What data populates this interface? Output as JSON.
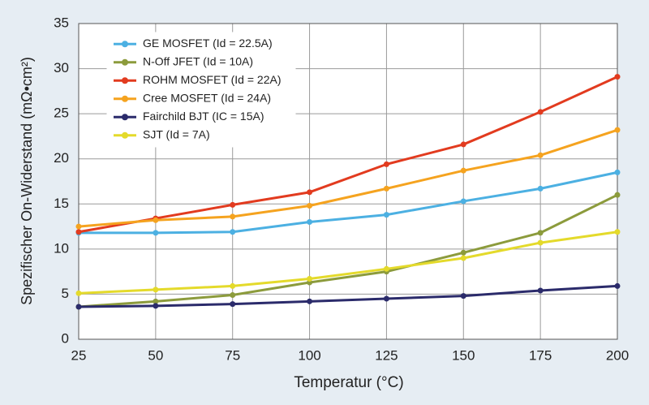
{
  "chart_data": {
    "type": "line",
    "x_label": "Temperatur (°C)",
    "y_label": "Spezifischer On-Widerstand (mΩ•cm²)",
    "x": [
      25,
      50,
      75,
      100,
      125,
      150,
      175,
      200
    ],
    "xlim": [
      25,
      200
    ],
    "xticks": [
      25,
      50,
      75,
      100,
      125,
      150,
      175,
      200
    ],
    "ylim": [
      0,
      35
    ],
    "yticks": [
      0,
      5,
      10,
      15,
      20,
      25,
      30,
      35
    ],
    "grid": true,
    "legend": "upper left",
    "series": [
      {
        "name": "GE MOSFET (Id = 22.5A)",
        "color": "#4cb0e2",
        "values": [
          11.8,
          11.8,
          11.9,
          13.0,
          13.8,
          15.3,
          16.7,
          18.5
        ]
      },
      {
        "name": "N-Off JFET (Id = 10A)",
        "color": "#8c9b3c",
        "values": [
          3.6,
          4.2,
          4.9,
          6.3,
          7.5,
          9.6,
          11.8,
          16.0
        ]
      },
      {
        "name": "ROHM MOSFET (Id = 22A)",
        "color": "#e23b1f",
        "values": [
          11.9,
          13.4,
          14.9,
          16.3,
          19.4,
          21.6,
          25.2,
          29.1
        ]
      },
      {
        "name": "Cree MOSFET (Id = 24A)",
        "color": "#f5a31f",
        "values": [
          12.5,
          13.2,
          13.6,
          14.8,
          16.7,
          18.7,
          20.4,
          23.2
        ]
      },
      {
        "name": "Fairchild BJT (IC = 15A)",
        "color": "#2b2b6b",
        "values": [
          3.6,
          3.7,
          3.9,
          4.2,
          4.5,
          4.8,
          5.4,
          5.9
        ]
      },
      {
        "name": "SJT (Id = 7A)",
        "color": "#e4da2b",
        "values": [
          5.1,
          5.5,
          5.9,
          6.7,
          7.8,
          9.0,
          10.7,
          11.9
        ]
      }
    ]
  }
}
